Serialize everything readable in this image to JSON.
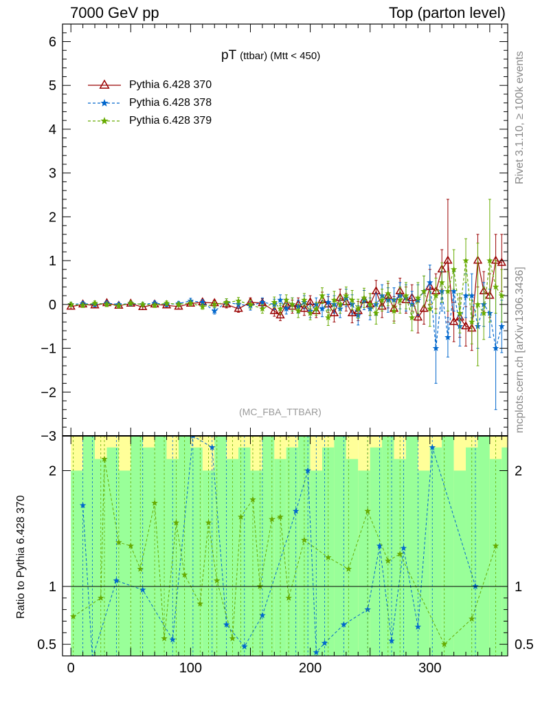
{
  "header": {
    "left": "7000 GeV pp",
    "right": "Top (parton level)"
  },
  "side_labels": {
    "rivet": "Rivet 3.1.10, ≥ 100k events",
    "mcplots": "mcplots.cern.ch [arXiv:1306.3436]"
  },
  "plot_title": {
    "main": "pT",
    "sub": "(ttbar) (Mtt < 450)"
  },
  "analysis_tag": "(MC_FBA_TTBAR)",
  "ratio_ylabel": "Ratio to Pythia 6.428 370",
  "chart_data": [
    {
      "type": "line",
      "title": "pT (ttbar) (Mtt < 450)",
      "xlabel": "",
      "ylabel": "",
      "xlim": [
        -7,
        365
      ],
      "ylim": [
        -3,
        6.4
      ],
      "xticks": [
        0,
        100,
        200,
        300
      ],
      "yticks": [
        -3,
        -2,
        -1,
        0,
        1,
        2,
        3,
        4,
        5,
        6
      ],
      "ytick_labels": [
        "−3",
        "−2",
        "−1",
        "0",
        "1",
        "2",
        "3",
        "4",
        "5",
        "6"
      ],
      "legend_position": "top-left",
      "series": [
        {
          "name": "Pythia 6.428 370",
          "color": "#990000",
          "marker": "open-triangle",
          "line_style": "solid",
          "x": [
            0,
            10,
            20,
            30,
            40,
            50,
            60,
            70,
            80,
            90,
            100,
            110,
            120,
            130,
            140,
            150,
            160,
            170,
            175,
            180,
            185,
            190,
            195,
            200,
            205,
            210,
            215,
            220,
            225,
            230,
            235,
            240,
            245,
            250,
            255,
            260,
            265,
            270,
            275,
            280,
            285,
            290,
            295,
            300,
            305,
            310,
            315,
            320,
            325,
            330,
            335,
            340,
            345,
            350,
            355,
            360
          ],
          "y": [
            -0.05,
            0.0,
            -0.02,
            0.03,
            -0.03,
            0.02,
            -0.06,
            0.0,
            -0.02,
            -0.05,
            0.02,
            0.05,
            0.03,
            0.0,
            -0.1,
            0.05,
            0.03,
            -0.15,
            -0.25,
            0.0,
            -0.05,
            0.0,
            -0.1,
            0.05,
            -0.15,
            0.1,
            0.0,
            -0.2,
            0.15,
            0.05,
            -0.2,
            -0.15,
            0.1,
            0.0,
            0.3,
            -0.05,
            0.2,
            -0.1,
            0.3,
            0.1,
            0.15,
            -0.3,
            -0.1,
            0.4,
            0.3,
            0.8,
            1.0,
            -0.4,
            -0.3,
            -0.5,
            -0.55,
            1.0,
            0.3,
            0.2,
            1.0,
            0.95
          ],
          "yerr": [
            0.05,
            0.05,
            0.05,
            0.05,
            0.05,
            0.05,
            0.05,
            0.05,
            0.05,
            0.05,
            0.06,
            0.06,
            0.07,
            0.08,
            0.08,
            0.1,
            0.1,
            0.12,
            0.12,
            0.12,
            0.15,
            0.15,
            0.15,
            0.15,
            0.15,
            0.18,
            0.18,
            0.2,
            0.2,
            0.2,
            0.22,
            0.22,
            0.22,
            0.25,
            0.25,
            0.25,
            0.28,
            0.28,
            0.3,
            0.3,
            0.3,
            0.35,
            0.35,
            0.4,
            0.4,
            0.45,
            1.4,
            0.45,
            0.45,
            0.45,
            0.5,
            0.6,
            0.45,
            0.5,
            0.6,
            0.65
          ]
        },
        {
          "name": "Pythia 6.428 378",
          "color": "#0066cc",
          "marker": "star",
          "line_style": "dashed",
          "x": [
            0,
            10,
            20,
            30,
            40,
            50,
            60,
            70,
            80,
            90,
            100,
            110,
            120,
            130,
            140,
            150,
            160,
            170,
            175,
            180,
            185,
            190,
            195,
            200,
            205,
            210,
            215,
            220,
            225,
            230,
            235,
            240,
            245,
            250,
            255,
            260,
            265,
            270,
            275,
            280,
            285,
            290,
            295,
            300,
            305,
            310,
            315,
            320,
            325,
            330,
            335,
            340,
            345,
            350,
            355,
            360
          ],
          "y": [
            0.0,
            0.02,
            0.0,
            0.03,
            0.0,
            0.02,
            0.0,
            0.03,
            0.0,
            0.02,
            0.08,
            0.05,
            -0.15,
            0.05,
            0.0,
            -0.03,
            0.05,
            0.0,
            0.1,
            -0.1,
            0.0,
            -0.05,
            0.05,
            -0.15,
            0.0,
            -0.1,
            0.05,
            0.0,
            -0.1,
            0.15,
            0.0,
            -0.25,
            0.1,
            -0.1,
            0.0,
            0.2,
            0.1,
            0.1,
            0.2,
            0.15,
            0.0,
            0.1,
            0.3,
            0.5,
            -1.0,
            0.3,
            -0.75,
            0.3,
            -0.5,
            0.2,
            0.2,
            -0.5,
            0.0,
            -0.2,
            -1.0,
            -0.5
          ],
          "yerr": [
            0.05,
            0.05,
            0.05,
            0.05,
            0.05,
            0.05,
            0.05,
            0.05,
            0.05,
            0.05,
            0.06,
            0.06,
            0.07,
            0.08,
            0.08,
            0.1,
            0.1,
            0.12,
            0.12,
            0.12,
            0.15,
            0.15,
            0.15,
            0.15,
            0.15,
            0.18,
            0.18,
            0.2,
            0.2,
            0.2,
            0.22,
            0.22,
            0.22,
            0.25,
            0.25,
            0.25,
            0.28,
            0.28,
            0.3,
            0.3,
            0.3,
            0.35,
            0.35,
            0.4,
            0.8,
            0.45,
            0.45,
            0.45,
            0.45,
            0.5,
            0.5,
            0.5,
            0.5,
            0.55,
            1.4,
            0.6
          ]
        },
        {
          "name": "Pythia 6.428 379",
          "color": "#66aa00",
          "marker": "star",
          "line_style": "dashed",
          "x": [
            0,
            10,
            20,
            30,
            40,
            50,
            60,
            70,
            80,
            90,
            100,
            110,
            120,
            130,
            140,
            150,
            160,
            170,
            175,
            180,
            185,
            190,
            195,
            200,
            205,
            210,
            215,
            220,
            225,
            230,
            235,
            240,
            245,
            250,
            255,
            260,
            265,
            270,
            275,
            280,
            285,
            290,
            295,
            300,
            305,
            310,
            315,
            320,
            325,
            330,
            335,
            340,
            345,
            350,
            355,
            360
          ],
          "y": [
            0.0,
            -0.02,
            0.03,
            0.0,
            -0.03,
            0.03,
            0.0,
            -0.02,
            0.03,
            0.0,
            0.03,
            -0.05,
            0.0,
            0.05,
            0.08,
            0.0,
            -0.1,
            0.05,
            -0.1,
            0.1,
            0.0,
            -0.15,
            0.1,
            -0.2,
            -0.1,
            0.2,
            -0.3,
            0.1,
            0.0,
            0.2,
            0.1,
            -0.1,
            0.15,
            0.0,
            -0.2,
            0.1,
            0.25,
            -0.15,
            0.1,
            0.2,
            -0.3,
            0.15,
            0.3,
            -0.1,
            0.2,
            0.5,
            0.3,
            0.8,
            -0.2,
            1.0,
            -0.4,
            0.0,
            -0.2,
            1.0,
            0.4,
            0.2
          ],
          "yerr": [
            0.05,
            0.05,
            0.05,
            0.05,
            0.05,
            0.05,
            0.05,
            0.05,
            0.05,
            0.05,
            0.06,
            0.06,
            0.07,
            0.08,
            0.08,
            0.1,
            0.1,
            0.12,
            0.12,
            0.12,
            0.15,
            0.15,
            0.15,
            0.15,
            0.15,
            0.18,
            0.18,
            0.2,
            0.2,
            0.2,
            0.22,
            0.22,
            0.22,
            0.25,
            0.25,
            0.25,
            0.28,
            0.28,
            0.3,
            0.3,
            0.3,
            0.35,
            0.35,
            0.4,
            0.4,
            0.45,
            0.45,
            0.45,
            0.45,
            0.5,
            0.5,
            1.4,
            0.6,
            1.4,
            0.6,
            0.6
          ]
        }
      ]
    },
    {
      "type": "line",
      "title": "",
      "xlabel": "",
      "ylabel": "Ratio to Pythia 6.428 370",
      "xlim": [
        -7,
        365
      ],
      "ylim": [
        0.4,
        2.3
      ],
      "xticks": [
        0,
        100,
        200,
        300
      ],
      "yticks": [
        0.5,
        1,
        2
      ],
      "ytick_labels": [
        "0.5",
        "1",
        "2"
      ],
      "reference_line": 1,
      "bands": {
        "colors": {
          "outer": "#ffff99",
          "inner": "#99ff99"
        },
        "x": [
          0,
          10,
          20,
          30,
          40,
          50,
          60,
          70,
          80,
          90,
          100,
          110,
          120,
          130,
          140,
          150,
          160,
          170,
          180,
          190,
          200,
          210,
          220,
          230,
          240,
          250,
          260,
          270,
          280,
          290,
          300,
          310,
          320,
          330,
          340,
          350,
          360
        ],
        "inner_low": [
          0.4,
          0.4,
          0.4,
          0.4,
          0.4,
          0.4,
          0.4,
          0.4,
          0.4,
          0.4,
          0.4,
          0.4,
          0.4,
          0.4,
          0.4,
          0.4,
          0.4,
          0.4,
          0.4,
          0.4,
          0.4,
          0.4,
          0.4,
          0.4,
          0.4,
          0.4,
          0.4,
          0.4,
          0.4,
          0.4,
          0.4,
          0.4,
          0.4,
          0.4,
          0.4,
          0.4,
          0.4
        ],
        "inner_high": [
          2.0,
          2.3,
          2.1,
          2.2,
          2.0,
          2.3,
          2.2,
          2.3,
          2.1,
          2.3,
          2.2,
          2.0,
          2.3,
          2.1,
          2.2,
          2.0,
          2.3,
          2.1,
          2.2,
          2.3,
          2.0,
          2.2,
          2.3,
          2.1,
          2.0,
          2.2,
          2.3,
          2.1,
          2.3,
          2.0,
          2.2,
          2.3,
          2.0,
          2.2,
          2.3,
          2.1,
          2.2
        ],
        "outer_high": [
          2.3,
          2.3,
          2.3,
          2.3,
          2.3,
          2.3,
          2.3,
          2.3,
          2.3,
          2.3,
          2.3,
          2.3,
          2.3,
          2.3,
          2.3,
          2.3,
          2.3,
          2.3,
          2.3,
          2.3,
          2.3,
          2.3,
          2.3,
          2.3,
          2.3,
          2.3,
          2.3,
          2.3,
          2.3,
          2.3,
          2.3,
          2.3,
          2.3,
          2.3,
          2.3,
          2.3,
          2.3
        ]
      },
      "series": [
        {
          "name": "Pythia 6.428 378",
          "color": "#0066cc",
          "marker": "star",
          "line_style": "dashed",
          "x": [
            10,
            18,
            38,
            60,
            85,
            102,
            118,
            130,
            145,
            160,
            188,
            198,
            205,
            212,
            228,
            248,
            258,
            268,
            278,
            290,
            302,
            338
          ],
          "y": [
            1.7,
            0.38,
            1.05,
            0.97,
            0.54,
            2.3,
            2.2,
            0.67,
            0.48,
            0.75,
            1.65,
            2.0,
            0.43,
            0.51,
            0.67,
            0.8,
            1.35,
            0.53,
            1.33,
            0.65,
            2.2,
            1.0
          ]
        },
        {
          "name": "Pythia 6.428 379",
          "color": "#66aa00",
          "marker": "star",
          "line_style": "dashed",
          "x": [
            2,
            25,
            28,
            40,
            50,
            58,
            70,
            78,
            88,
            95,
            108,
            115,
            122,
            135,
            142,
            152,
            158,
            168,
            175,
            182,
            195,
            215,
            232,
            248,
            265,
            275,
            312,
            335,
            355
          ],
          "y": [
            0.74,
            0.9,
            2.1,
            1.38,
            1.35,
            1.15,
            1.72,
            0.55,
            1.55,
            1.1,
            0.85,
            1.55,
            1.05,
            0.55,
            1.6,
            1.75,
            1.0,
            1.58,
            1.6,
            0.9,
            1.4,
            1.25,
            1.15,
            1.65,
            1.22,
            1.28,
            0.5,
            0.72,
            1.35
          ]
        }
      ]
    }
  ]
}
